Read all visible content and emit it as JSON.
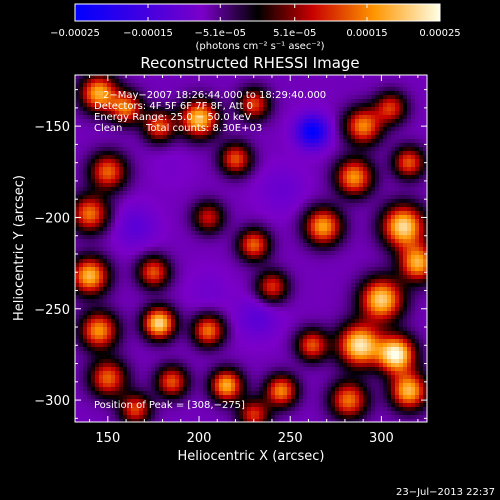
{
  "chart_data": {
    "type": "heatmap",
    "title": "Reconstructed RHESSI Image",
    "xlabel": "Heliocentric X (arcsec)",
    "ylabel": "Heliocentric Y (arcsec)",
    "xlim": [
      132,
      325
    ],
    "ylim": [
      -312,
      -122
    ],
    "x_ticks": [
      150,
      200,
      250,
      300
    ],
    "x_tick_labels": [
      "150",
      "200",
      "250",
      "300"
    ],
    "y_ticks": [
      -150,
      -200,
      -250,
      -300
    ],
    "y_tick_labels": [
      "−150",
      "−200",
      "−250",
      "−300"
    ],
    "colorbar": {
      "range": [
        -0.00025,
        0.00025
      ],
      "tick_values": [
        -0.00025,
        -0.00015,
        -5.1e-05,
        5.1e-05,
        0.00015,
        0.00025
      ],
      "tick_labels": [
        "−0.00025",
        "−0.00015",
        "−5.1e−05",
        "5.1e−05",
        "0.00015",
        "0.00025"
      ],
      "unit_label": "(photons cm⁻² s⁻¹ asec⁻²)"
    },
    "annotations": [
      "2−May−2007 18:26:44.000 to 18:29:40.000",
      "Detectors: 4F 5F 6F 7F 8F, Att 0",
      "Energy Range: 25.0 − 50.0 keV",
      "Clean",
      "Total counts: 8.30E+03",
      "Position of Peak = [308,−275]"
    ],
    "peak_position": [
      308,
      -275
    ],
    "blobs": [
      {
        "x": 145,
        "y": -132,
        "v": 0.00018,
        "s": 7
      },
      {
        "x": 160,
        "y": -140,
        "v": 0.00014,
        "s": 6
      },
      {
        "x": 178,
        "y": -150,
        "v": 0.00012,
        "s": 6
      },
      {
        "x": 200,
        "y": -146,
        "v": 0.0002,
        "s": 7
      },
      {
        "x": 230,
        "y": -138,
        "v": 0.00011,
        "s": 6
      },
      {
        "x": 262,
        "y": -153,
        "v": -0.00025,
        "s": 6
      },
      {
        "x": 290,
        "y": -150,
        "v": 0.00015,
        "s": 7
      },
      {
        "x": 305,
        "y": -140,
        "v": 0.0001,
        "s": 6
      },
      {
        "x": 150,
        "y": -175,
        "v": 0.00013,
        "s": 7
      },
      {
        "x": 185,
        "y": -172,
        "v": -8e-05,
        "s": 8
      },
      {
        "x": 220,
        "y": -168,
        "v": 0.00012,
        "s": 6
      },
      {
        "x": 245,
        "y": -185,
        "v": -0.0001,
        "s": 9
      },
      {
        "x": 285,
        "y": -178,
        "v": 0.00016,
        "s": 7
      },
      {
        "x": 315,
        "y": -170,
        "v": 0.00012,
        "s": 6
      },
      {
        "x": 140,
        "y": -198,
        "v": 0.00014,
        "s": 7
      },
      {
        "x": 165,
        "y": -205,
        "v": -0.00012,
        "s": 8
      },
      {
        "x": 205,
        "y": -200,
        "v": 8e-05,
        "s": 6
      },
      {
        "x": 230,
        "y": -215,
        "v": 0.00013,
        "s": 6
      },
      {
        "x": 268,
        "y": -205,
        "v": 0.00017,
        "s": 7
      },
      {
        "x": 312,
        "y": -205,
        "v": 0.00022,
        "s": 8
      },
      {
        "x": 320,
        "y": -225,
        "v": 0.00018,
        "s": 7
      },
      {
        "x": 140,
        "y": -232,
        "v": 0.00019,
        "s": 7
      },
      {
        "x": 175,
        "y": -230,
        "v": 0.00012,
        "s": 6
      },
      {
        "x": 205,
        "y": -240,
        "v": -9e-05,
        "s": 8
      },
      {
        "x": 240,
        "y": -238,
        "v": 0.0001,
        "s": 6
      },
      {
        "x": 270,
        "y": -230,
        "v": -7e-05,
        "s": 7
      },
      {
        "x": 300,
        "y": -245,
        "v": 0.00021,
        "s": 8
      },
      {
        "x": 145,
        "y": -262,
        "v": 0.00016,
        "s": 7
      },
      {
        "x": 178,
        "y": -258,
        "v": 0.00022,
        "s": 6
      },
      {
        "x": 205,
        "y": -262,
        "v": 0.00014,
        "s": 6
      },
      {
        "x": 232,
        "y": -255,
        "v": -0.00012,
        "s": 8
      },
      {
        "x": 262,
        "y": -270,
        "v": 0.00012,
        "s": 6
      },
      {
        "x": 288,
        "y": -270,
        "v": 0.00023,
        "s": 8
      },
      {
        "x": 308,
        "y": -275,
        "v": 0.00025,
        "s": 7
      },
      {
        "x": 150,
        "y": -288,
        "v": 0.00013,
        "s": 7
      },
      {
        "x": 185,
        "y": -290,
        "v": 0.00012,
        "s": 6
      },
      {
        "x": 215,
        "y": -292,
        "v": 0.00018,
        "s": 6
      },
      {
        "x": 245,
        "y": -295,
        "v": 0.00015,
        "s": 6
      },
      {
        "x": 282,
        "y": -300,
        "v": 0.00014,
        "s": 7
      },
      {
        "x": 315,
        "y": -295,
        "v": 0.00019,
        "s": 7
      },
      {
        "x": 165,
        "y": -305,
        "v": 0.00011,
        "s": 6
      },
      {
        "x": 230,
        "y": -308,
        "v": 0.0001,
        "s": 6
      }
    ]
  },
  "footer": {
    "timestamp": "23−Jul−2013 22:37"
  }
}
